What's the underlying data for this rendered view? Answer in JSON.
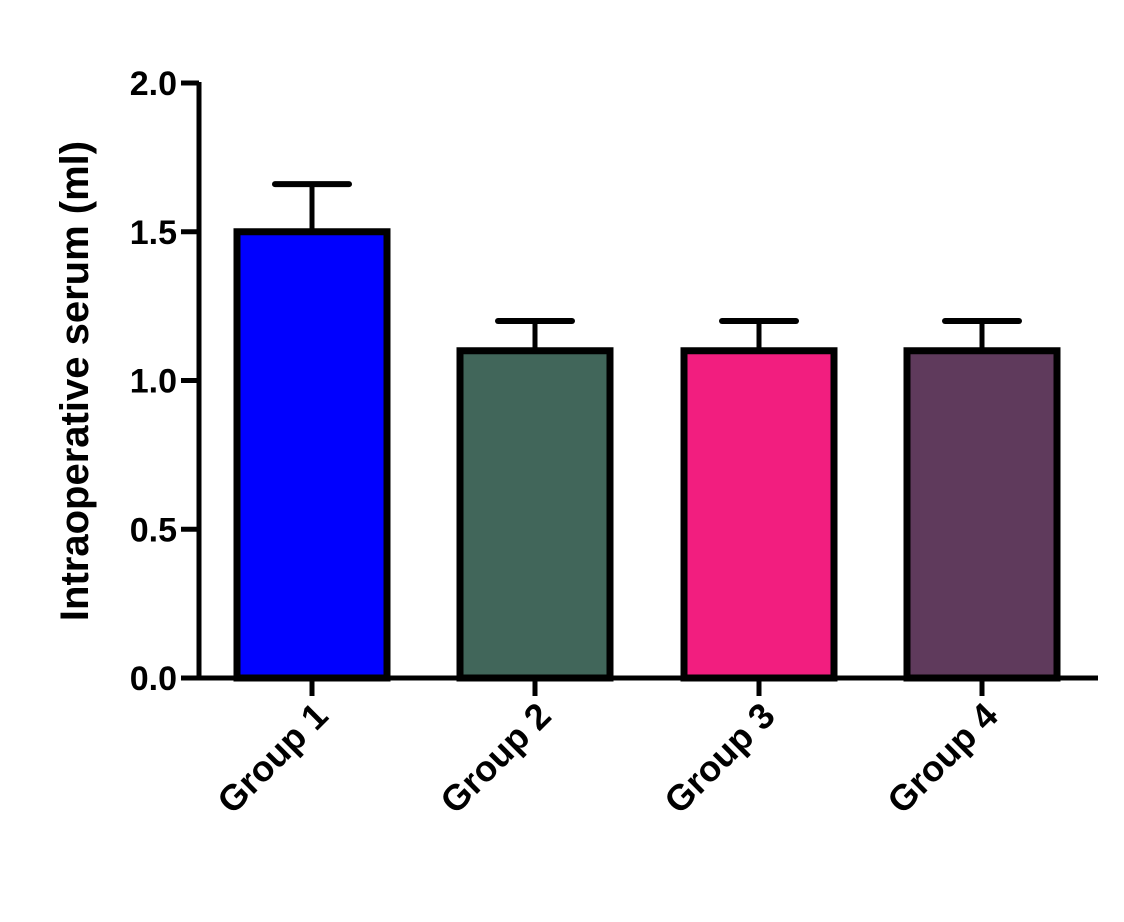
{
  "chart_data": {
    "type": "bar",
    "title": "",
    "xlabel": "",
    "ylabel": "Intraoperative serum (ml)",
    "ylim": [
      0,
      2.0
    ],
    "yticks": [
      0.0,
      0.5,
      1.0,
      1.5,
      2.0
    ],
    "ytick_labels": [
      "0.0",
      "0.5",
      "1.0",
      "1.5",
      "2.0"
    ],
    "categories": [
      "Group 1",
      "Group 2",
      "Group 3",
      "Group 4"
    ],
    "values": [
      1.5,
      1.1,
      1.1,
      1.1
    ],
    "error_upper": [
      0.16,
      0.1,
      0.1,
      0.1
    ],
    "colors": [
      "#0000ff",
      "#41665a",
      "#f21e7f",
      "#5f3a5c"
    ],
    "grid": false,
    "legend": "none"
  }
}
